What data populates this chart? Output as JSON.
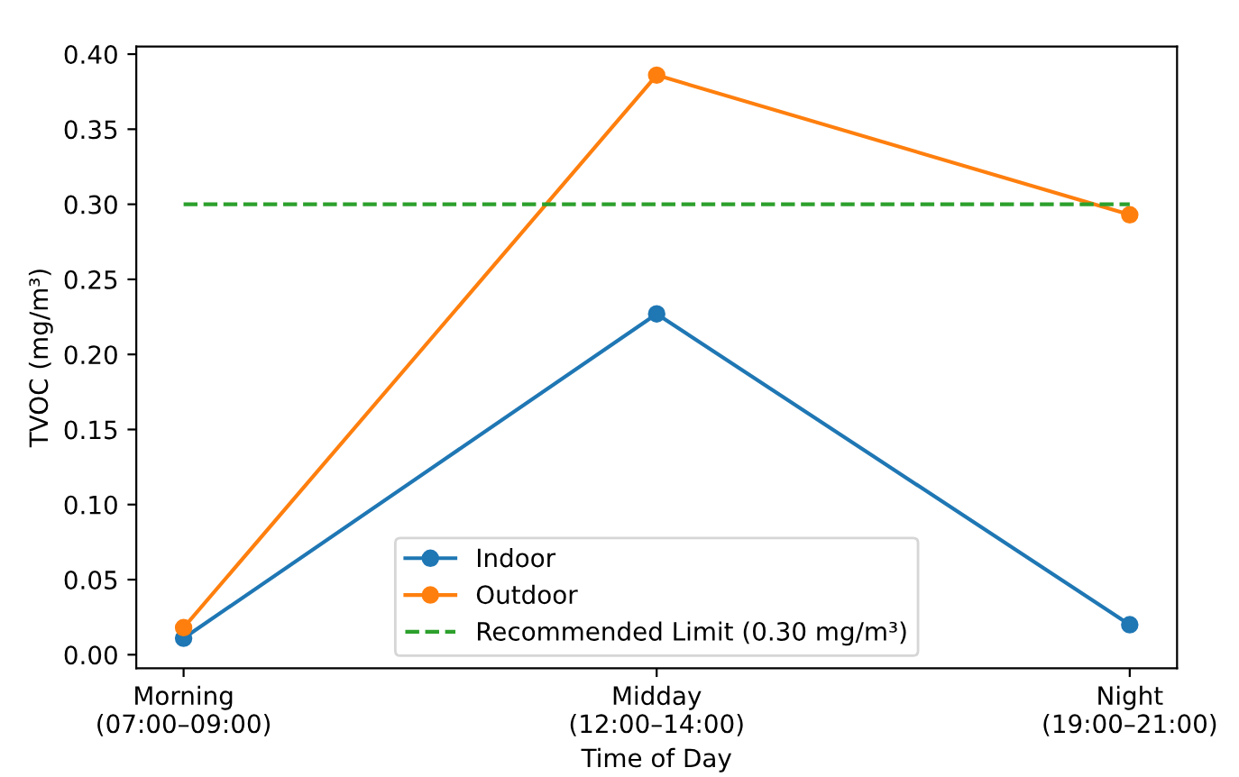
{
  "chart_data": {
    "type": "line",
    "xlabel": "Time of Day",
    "ylabel": "TVOC (mg/m³)",
    "categories": [
      "Morning\n(07:00–09:00)",
      "Midday\n(12:00–14:00)",
      "Night\n(19:00–21:00)"
    ],
    "series": [
      {
        "name": "Indoor",
        "color": "#1f77b4",
        "values": [
          0.011,
          0.227,
          0.02
        ]
      },
      {
        "name": "Outdoor",
        "color": "#ff7f0e",
        "values": [
          0.018,
          0.386,
          0.293
        ]
      }
    ],
    "ref_lines": [
      {
        "axis": "y",
        "value": 0.3,
        "label": "Recommended Limit (0.30 mg/m³)",
        "color": "#2ca02c",
        "line_style": "dashed"
      }
    ],
    "ylim": [
      -0.009,
      0.405
    ],
    "yticks": [
      {
        "value": 0,
        "label": "0.00"
      },
      0.05,
      {
        "value": 0.1,
        "label": "0.10"
      },
      0.15,
      {
        "value": 0.2,
        "label": "0.20"
      },
      0.25,
      {
        "value": 0.3,
        "label": "0.30"
      },
      0.35,
      {
        "value": 0.4,
        "label": "0.40"
      }
    ],
    "marker": "circle",
    "line_style": "solid",
    "legend": "bottom",
    "grid": false
  }
}
